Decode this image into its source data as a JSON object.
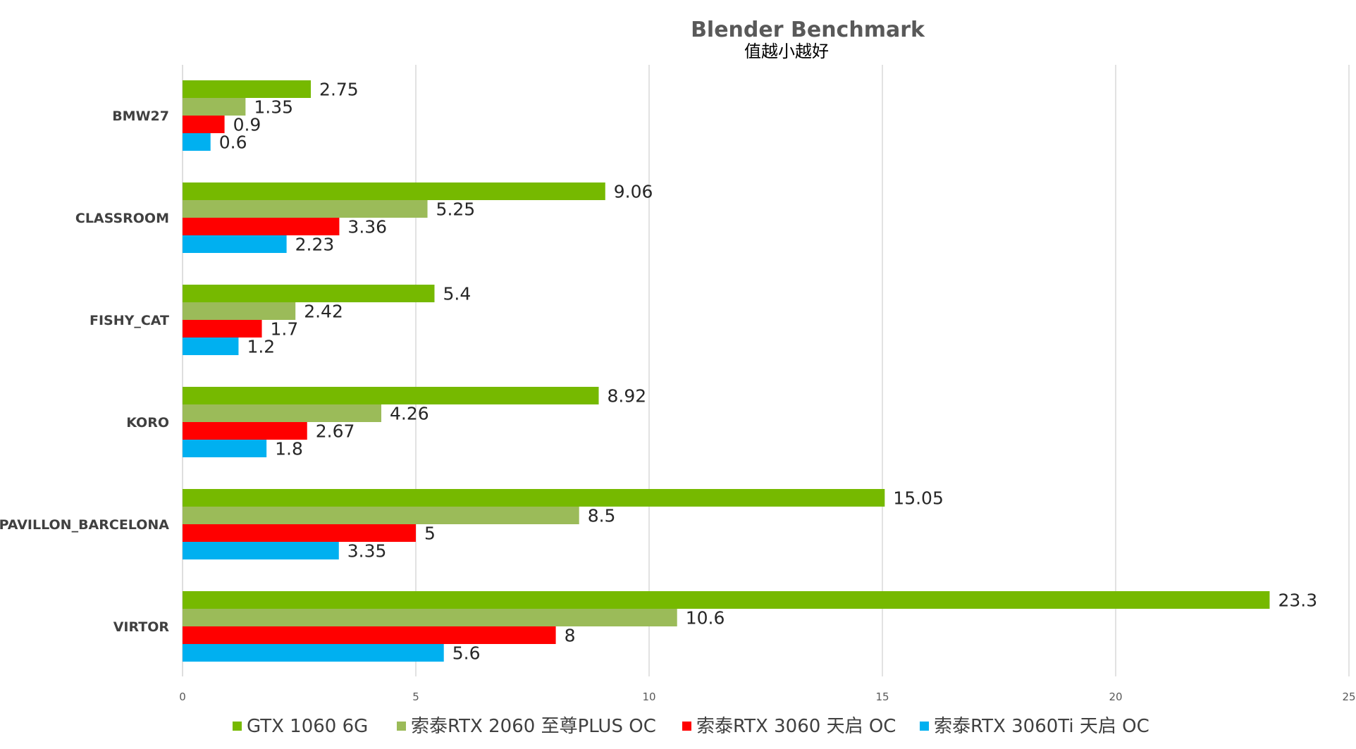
{
  "chart_data": {
    "type": "bar",
    "orientation": "horizontal",
    "title": "Blender Benchmark",
    "subtitle": "值越小越好",
    "categories": [
      "BMW27",
      "CLASSROOM",
      "FISHY_CAT",
      "KORO",
      "PAVILLON_BARCELONA",
      "VIRTOR"
    ],
    "series": [
      {
        "name": "GTX 1060 6G",
        "color": "#76B900",
        "values": [
          2.75,
          9.06,
          5.4,
          8.92,
          15.05,
          23.3
        ],
        "labels": [
          "2.75",
          "9.06",
          "5.4",
          "8.92",
          "15.05",
          "23.3"
        ]
      },
      {
        "name": "索泰RTX 2060 至尊PLUS OC",
        "color": "#9BBB59",
        "values": [
          1.35,
          5.25,
          2.42,
          4.26,
          8.5,
          10.6
        ],
        "labels": [
          "1.35",
          "5.25",
          "2.42",
          "4.26",
          "8.5",
          "10.6"
        ]
      },
      {
        "name": "索泰RTX 3060 天启 OC",
        "color": "#FF0000",
        "values": [
          0.9,
          3.36,
          1.7,
          2.67,
          5,
          8
        ],
        "labels": [
          "0.9",
          "3.36",
          "1.7",
          "2.67",
          "5",
          "8"
        ]
      },
      {
        "name": "索泰RTX 3060Ti 天启 OC",
        "color": "#00B0F0",
        "values": [
          0.6,
          2.23,
          1.2,
          1.8,
          3.35,
          5.6
        ],
        "labels": [
          "0.6",
          "2.23",
          "1.2",
          "1.8",
          "3.35",
          "5.6"
        ]
      }
    ],
    "xlim": [
      0,
      25
    ],
    "xticks": [
      "0",
      "5",
      "10",
      "15",
      "20",
      "25"
    ],
    "grid": true,
    "legend": "bottom"
  }
}
